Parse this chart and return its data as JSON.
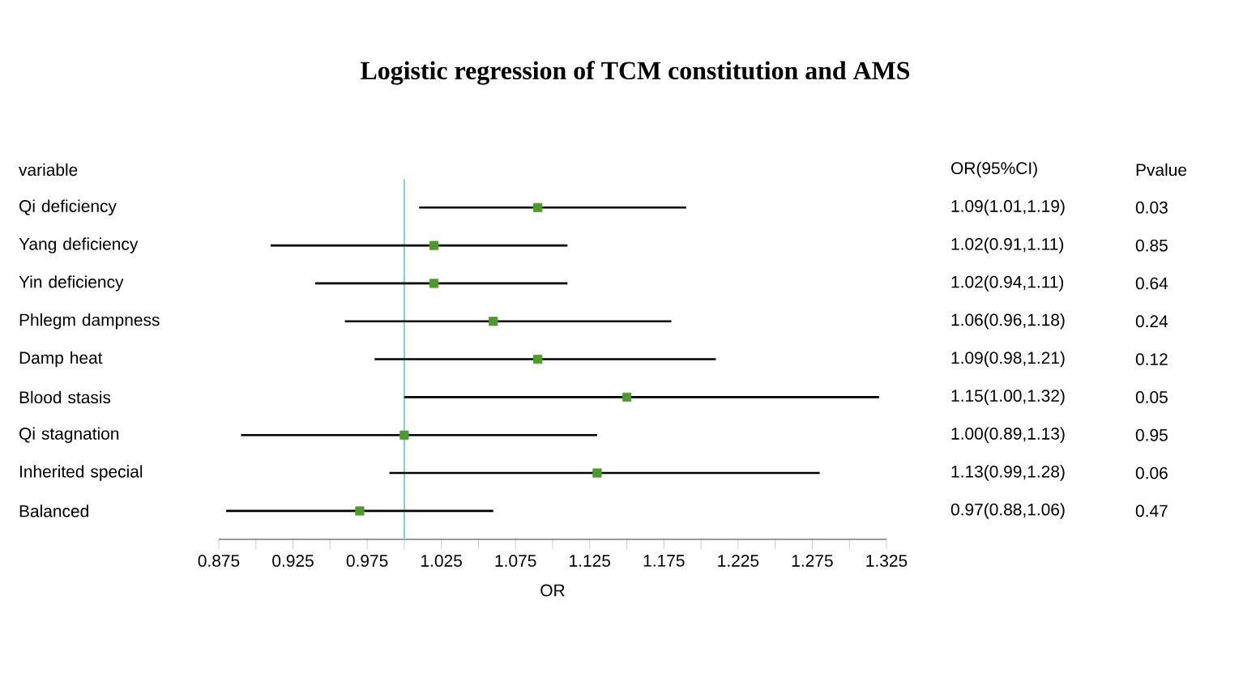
{
  "chart_data": {
    "type": "scatter",
    "orientation": "horizontal",
    "title": "Logistic regression of TCM constitution and AMS",
    "xlabel": "OR",
    "categories": [
      "Qi deficiency",
      "Yang deficiency",
      "Yin deficiency",
      "Phlegm dampness",
      "Damp heat",
      "Blood stasis",
      "Qi stagnation",
      "Inherited special",
      "Balanced"
    ],
    "series": [
      {
        "color": "#4e9a2e",
        "values": [
          1.09,
          1.02,
          1.02,
          1.06,
          1.09,
          1.15,
          1.0,
          1.13,
          0.97
        ],
        "errors": [
          [
            1.01,
            1.19
          ],
          [
            0.91,
            1.11
          ],
          [
            0.94,
            1.11
          ],
          [
            0.96,
            1.18
          ],
          [
            0.98,
            1.21
          ],
          [
            1.0,
            1.32
          ],
          [
            0.89,
            1.13
          ],
          [
            0.99,
            1.28
          ],
          [
            0.88,
            1.06
          ]
        ],
        "value_labels": [
          "1.09(1.01,1.19)",
          "1.02(0.91,1.11)",
          "1.02(0.94,1.11)",
          "1.06(0.96,1.18)",
          "1.09(0.98,1.21)",
          "1.15(1.00,1.32)",
          "1.00(0.89,1.13)",
          "1.13(0.99,1.28)",
          "0.97(0.88,1.06)"
        ]
      }
    ],
    "marker": "square",
    "xlim": [
      0.875,
      1.325
    ],
    "xticks": [
      0.875,
      {
        "value": 0.9,
        "label": null
      },
      0.925,
      {
        "value": 0.95,
        "label": null
      },
      0.975,
      {
        "value": 1.0,
        "label": null
      },
      1.025,
      {
        "value": 1.05,
        "label": null
      },
      1.075,
      {
        "value": 1.1,
        "label": null
      },
      1.125,
      {
        "value": 1.15,
        "label": null
      },
      1.175,
      {
        "value": 1.2,
        "label": null
      },
      1.225,
      {
        "value": 1.25,
        "label": null
      },
      1.275,
      {
        "value": 1.3,
        "label": null
      },
      1.325
    ],
    "ref_lines": [
      {
        "axis": "x",
        "value": 1.0,
        "color": "#7fd0d6"
      }
    ],
    "annotations": [
      "variable",
      "OR(95%CI)",
      "Pvalue",
      "0.03",
      "0.85",
      "0.64",
      "0.24",
      "0.12",
      "0.05",
      "0.95",
      "0.06",
      "0.47"
    ]
  }
}
